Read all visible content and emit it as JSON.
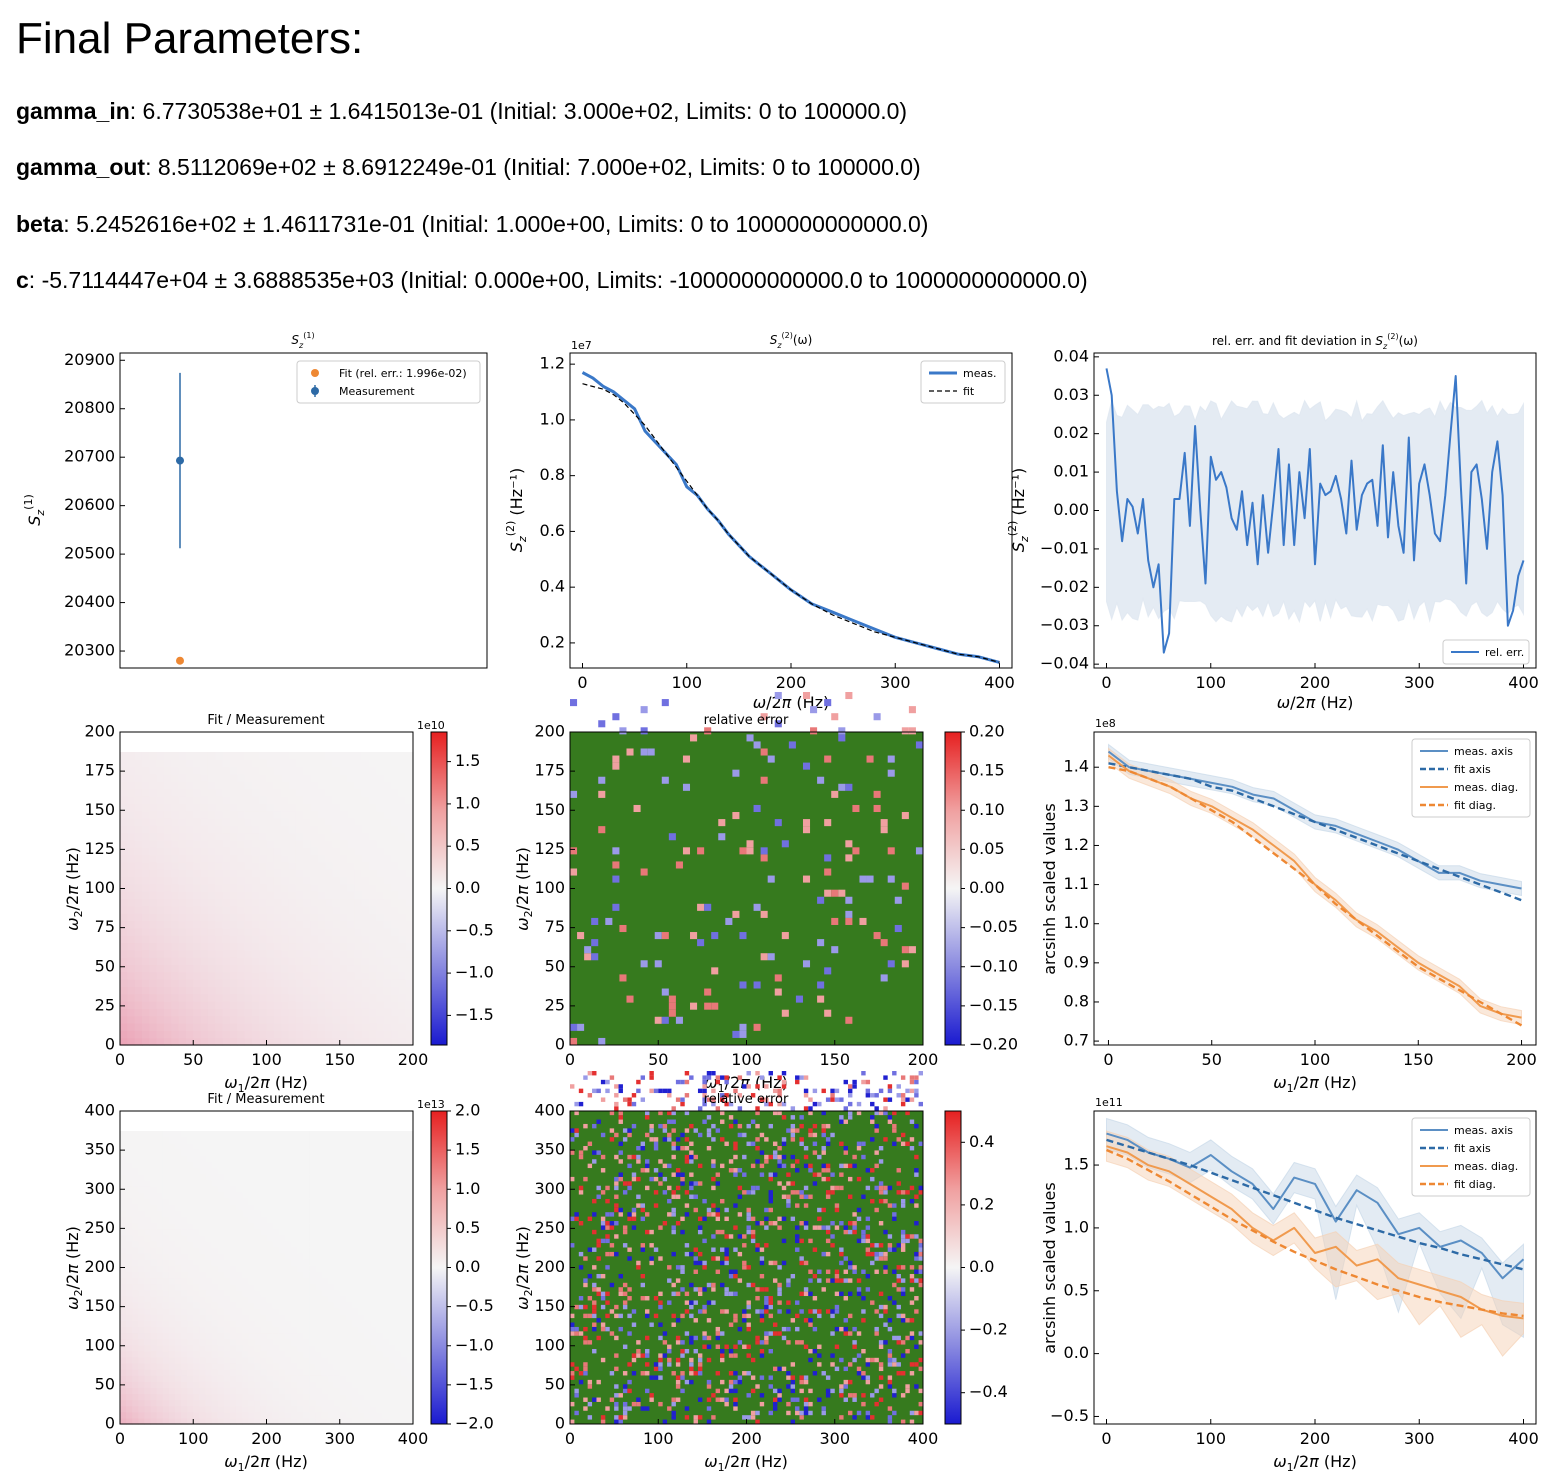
{
  "heading": "Final Parameters:",
  "params": [
    {
      "name": "gamma_in",
      "rest": ": 6.7730538e+01 ± 1.6415013e-01 (Initial: 3.000e+02, Limits: 0 to 100000.0)"
    },
    {
      "name": "gamma_out",
      "rest": ": 8.5112069e+02 ± 8.6912249e-01 (Initial: 7.000e+02, Limits: 0 to 100000.0)"
    },
    {
      "name": "beta",
      "rest": ": 5.2452616e+02 ± 1.4611731e-01 (Initial: 1.000e+00, Limits: 0 to 1000000000000.0)"
    },
    {
      "name": "c",
      "rest": ": -5.7114447e+04 ± 3.6888535e+03 (Initial: 0.000e+00, Limits: -1000000000000.0 to 1000000000000.0)"
    }
  ],
  "colors": {
    "blue": "#3a78c8",
    "blue_dark": "#2d6aa6",
    "orange": "#ee8833",
    "band_blue": "#c8d8e8",
    "band_orange": "#f5d2b5",
    "green": "#367a1e"
  },
  "chart_data": [
    {
      "type": "scatter",
      "title": "S_z^(1)",
      "ylabel": "S_z^(1)",
      "ylim": [
        20265,
        20915
      ],
      "yticks": [
        20300,
        20400,
        20500,
        20600,
        20700,
        20800,
        20900
      ],
      "legend": [
        "Fit (rel. err.: 1.996e-02)",
        "Measurement"
      ],
      "fit": 20280,
      "measurement": 20693,
      "measurement_err": 181
    },
    {
      "type": "line",
      "title": "S_z^(2)(ω)",
      "xlabel": "ω/2π (Hz)",
      "ylabel": "S_z^(2) (Hz^-1)",
      "offset_label": "1e7",
      "xlim": [
        -12,
        412
      ],
      "ylim": [
        0.11,
        1.24
      ],
      "xticks": [
        0,
        100,
        200,
        300,
        400
      ],
      "yticks": [
        0.2,
        0.4,
        0.6,
        0.8,
        1.0,
        1.2
      ],
      "legend": [
        "meas.",
        "fit"
      ],
      "x": [
        0,
        10,
        20,
        30,
        40,
        50,
        60,
        70,
        80,
        90,
        100,
        110,
        120,
        130,
        140,
        150,
        160,
        170,
        180,
        190,
        200,
        220,
        240,
        260,
        280,
        300,
        320,
        340,
        360,
        380,
        400
      ],
      "meas": [
        1.17,
        1.15,
        1.12,
        1.1,
        1.07,
        1.04,
        0.96,
        0.92,
        0.88,
        0.84,
        0.76,
        0.73,
        0.68,
        0.64,
        0.59,
        0.55,
        0.51,
        0.48,
        0.45,
        0.42,
        0.39,
        0.34,
        0.31,
        0.28,
        0.25,
        0.22,
        0.2,
        0.18,
        0.16,
        0.15,
        0.13
      ],
      "fit": [
        1.13,
        1.12,
        1.11,
        1.09,
        1.06,
        1.02,
        0.98,
        0.93,
        0.88,
        0.83,
        0.78,
        0.73,
        0.68,
        0.64,
        0.59,
        0.55,
        0.51,
        0.48,
        0.45,
        0.42,
        0.39,
        0.34,
        0.3,
        0.27,
        0.24,
        0.22,
        0.2,
        0.18,
        0.16,
        0.15,
        0.13
      ]
    },
    {
      "type": "line",
      "title": "rel. err. and fit deviation in S_z^(2)(ω)",
      "xlabel": "ω/2π (Hz)",
      "ylabel": "S_z^(2) (Hz^-1)",
      "xlim": [
        -12,
        412
      ],
      "ylim": [
        -0.041,
        0.041
      ],
      "xticks": [
        0,
        100,
        200,
        300,
        400
      ],
      "yticks": [
        -0.04,
        -0.03,
        -0.02,
        -0.01,
        0.0,
        0.01,
        0.02,
        0.03,
        0.04
      ],
      "legend": [
        "rel. err."
      ],
      "band": 0.026,
      "x": [
        0,
        5,
        10,
        15,
        20,
        25,
        30,
        35,
        40,
        45,
        50,
        55,
        60,
        65,
        70,
        75,
        80,
        85,
        90,
        95,
        100,
        105,
        110,
        115,
        120,
        125,
        130,
        135,
        140,
        145,
        150,
        155,
        160,
        165,
        170,
        175,
        180,
        185,
        190,
        195,
        200,
        205,
        210,
        215,
        220,
        225,
        230,
        235,
        240,
        245,
        250,
        255,
        260,
        265,
        270,
        275,
        280,
        285,
        290,
        295,
        300,
        305,
        310,
        315,
        320,
        325,
        330,
        335,
        340,
        345,
        350,
        355,
        360,
        365,
        370,
        375,
        380,
        385,
        390,
        395,
        400
      ],
      "y": [
        0.037,
        0.03,
        0.005,
        -0.008,
        0.003,
        0.001,
        -0.006,
        0.003,
        -0.013,
        -0.02,
        -0.014,
        -0.037,
        -0.032,
        0.003,
        0.003,
        0.015,
        -0.004,
        0.022,
        0.0,
        -0.019,
        0.014,
        0.008,
        0.01,
        0.006,
        -0.002,
        -0.005,
        0.005,
        -0.009,
        0.002,
        -0.014,
        0.004,
        -0.011,
        0.002,
        0.016,
        -0.009,
        0.012,
        -0.009,
        0.01,
        -0.002,
        0.016,
        -0.014,
        0.007,
        0.004,
        0.005,
        0.009,
        0.003,
        -0.006,
        0.013,
        -0.005,
        0.004,
        0.007,
        0.008,
        -0.004,
        0.017,
        -0.007,
        0.01,
        -0.004,
        -0.011,
        0.019,
        -0.013,
        0.007,
        0.012,
        0.004,
        -0.006,
        -0.008,
        0.004,
        0.02,
        0.035,
        0.006,
        -0.019,
        0.01,
        0.012,
        0.003,
        -0.01,
        0.01,
        0.018,
        0.004,
        -0.03,
        -0.026,
        -0.017,
        -0.013
      ]
    },
    {
      "type": "heatmap",
      "title": "Fit / Measurement",
      "xlabel": "ω1/2π (Hz)",
      "ylabel": "ω2/2π (Hz)",
      "xlim": [
        0,
        200
      ],
      "ylim": [
        0,
        200
      ],
      "xticks": [
        0,
        50,
        100,
        150,
        200
      ],
      "yticks": [
        0,
        25,
        50,
        75,
        100,
        125,
        150,
        175,
        200
      ],
      "colorbar_offset": "1e10",
      "colorbar_range": [
        -1.85,
        1.85
      ],
      "colorbar_ticks": [
        -1.5,
        -1.0,
        -0.5,
        0.0,
        0.5,
        1.0,
        1.5
      ],
      "colorbar_tick_labels": [
        "−1.5",
        "−1.0",
        "−0.5",
        "0.0",
        "0.5",
        "1.0",
        "1.5"
      ],
      "peak": 0.5
    },
    {
      "type": "heatmap",
      "title": "relative error",
      "xlabel": "ω1/2π (Hz)",
      "ylabel": "ω2/2π (Hz)",
      "xlim": [
        0,
        200
      ],
      "ylim": [
        0,
        200
      ],
      "xticks": [
        0,
        50,
        100,
        150,
        200
      ],
      "yticks": [
        0,
        25,
        50,
        75,
        100,
        125,
        150,
        175,
        200
      ],
      "colorbar_range": [
        -0.2,
        0.2
      ],
      "colorbar_ticks": [
        -0.2,
        -0.15,
        -0.1,
        -0.05,
        0.0,
        0.05,
        0.1,
        0.15,
        0.2
      ],
      "colorbar_tick_labels": [
        "−0.20",
        "−0.15",
        "−0.10",
        "−0.05",
        "0.00",
        "0.05",
        "0.10",
        "0.15",
        "0.20"
      ]
    },
    {
      "type": "line",
      "xlabel": "ω1/2π (Hz)",
      "ylabel": "arcsinh scaled values",
      "offset_label": "1e8",
      "xlim": [
        -7,
        207
      ],
      "ylim": [
        0.69,
        1.49
      ],
      "xticks": [
        0,
        50,
        100,
        150,
        200
      ],
      "yticks": [
        0.7,
        0.8,
        0.9,
        1.0,
        1.1,
        1.2,
        1.3,
        1.4
      ],
      "legend": [
        "meas. axis",
        "fit axis",
        "meas. diag.",
        "fit diag."
      ],
      "x": [
        0,
        10,
        20,
        30,
        40,
        50,
        60,
        70,
        80,
        90,
        100,
        110,
        120,
        130,
        140,
        150,
        160,
        170,
        180,
        190,
        200
      ],
      "meas_axis": [
        1.44,
        1.4,
        1.39,
        1.38,
        1.37,
        1.36,
        1.35,
        1.33,
        1.32,
        1.29,
        1.26,
        1.25,
        1.23,
        1.21,
        1.19,
        1.16,
        1.13,
        1.13,
        1.11,
        1.1,
        1.09
      ],
      "fit_axis": [
        1.41,
        1.4,
        1.39,
        1.38,
        1.37,
        1.35,
        1.34,
        1.32,
        1.3,
        1.28,
        1.26,
        1.24,
        1.22,
        1.2,
        1.18,
        1.16,
        1.14,
        1.12,
        1.1,
        1.08,
        1.06
      ],
      "meas_diag": [
        1.43,
        1.39,
        1.37,
        1.35,
        1.32,
        1.3,
        1.27,
        1.24,
        1.2,
        1.16,
        1.1,
        1.06,
        1.01,
        0.98,
        0.94,
        0.9,
        0.87,
        0.84,
        0.79,
        0.77,
        0.76
      ],
      "fit_diag": [
        1.4,
        1.39,
        1.37,
        1.35,
        1.32,
        1.29,
        1.26,
        1.22,
        1.18,
        1.14,
        1.1,
        1.05,
        1.01,
        0.97,
        0.93,
        0.89,
        0.86,
        0.83,
        0.8,
        0.77,
        0.74
      ]
    },
    {
      "type": "heatmap",
      "title": "Fit / Measurement",
      "xlabel": "ω1/2π (Hz)",
      "ylabel": "ω2/2π (Hz)",
      "xlim": [
        0,
        400
      ],
      "ylim": [
        0,
        400
      ],
      "xticks": [
        0,
        100,
        200,
        300,
        400
      ],
      "yticks": [
        0,
        50,
        100,
        150,
        200,
        250,
        300,
        350,
        400
      ],
      "colorbar_offset": "1e13",
      "colorbar_range": [
        -2.0,
        2.0
      ],
      "colorbar_ticks": [
        -2.0,
        -1.5,
        -1.0,
        -0.5,
        0.0,
        0.5,
        1.0,
        1.5,
        2.0
      ],
      "colorbar_tick_labels": [
        "−2.0",
        "−1.5",
        "−1.0",
        "−0.5",
        "0.0",
        "0.5",
        "1.0",
        "1.5",
        "2.0"
      ],
      "peak": 0.42
    },
    {
      "type": "heatmap",
      "title": "relative error",
      "xlabel": "ω1/2π (Hz)",
      "ylabel": "ω2/2π (Hz)",
      "xlim": [
        0,
        400
      ],
      "ylim": [
        0,
        400
      ],
      "xticks": [
        0,
        100,
        200,
        300,
        400
      ],
      "yticks": [
        0,
        50,
        100,
        150,
        200,
        250,
        300,
        350,
        400
      ],
      "colorbar_range": [
        -0.5,
        0.5
      ],
      "colorbar_ticks": [
        -0.4,
        -0.2,
        0.0,
        0.2,
        0.4
      ],
      "colorbar_tick_labels": [
        "−0.4",
        "−0.2",
        "0.0",
        "0.2",
        "0.4"
      ]
    },
    {
      "type": "line",
      "xlabel": "ω1/2π (Hz)",
      "ylabel": "arcsinh scaled values",
      "offset_label": "1e11",
      "xlim": [
        -12,
        412
      ],
      "ylim": [
        -0.56,
        1.93
      ],
      "xticks": [
        0,
        100,
        200,
        300,
        400
      ],
      "yticks": [
        -0.5,
        0.0,
        0.5,
        1.0,
        1.5
      ],
      "yticklabels": [
        "−0.5",
        "0.0",
        "0.5",
        "1.0",
        "1.5"
      ],
      "legend": [
        "meas. axis",
        "fit axis",
        "meas. diag.",
        "fit diag."
      ],
      "x": [
        0,
        20,
        40,
        60,
        80,
        100,
        120,
        140,
        160,
        180,
        200,
        220,
        240,
        260,
        280,
        300,
        320,
        340,
        360,
        380,
        400
      ],
      "meas_axis": [
        1.75,
        1.7,
        1.6,
        1.55,
        1.48,
        1.58,
        1.45,
        1.35,
        1.15,
        1.4,
        1.35,
        1.05,
        1.3,
        1.2,
        0.95,
        1.0,
        0.85,
        0.9,
        0.8,
        0.6,
        0.75
      ],
      "fit_axis": [
        1.7,
        1.65,
        1.6,
        1.55,
        1.5,
        1.44,
        1.38,
        1.32,
        1.26,
        1.2,
        1.14,
        1.08,
        1.03,
        0.98,
        0.93,
        0.88,
        0.84,
        0.79,
        0.75,
        0.71,
        0.67
      ],
      "meas_diag": [
        1.65,
        1.6,
        1.5,
        1.45,
        1.35,
        1.25,
        1.15,
        1.0,
        0.9,
        1.0,
        0.8,
        0.85,
        0.7,
        0.75,
        0.6,
        0.55,
        0.5,
        0.45,
        0.35,
        0.3,
        0.28
      ],
      "fit_diag": [
        1.62,
        1.55,
        1.46,
        1.37,
        1.27,
        1.17,
        1.07,
        0.98,
        0.89,
        0.81,
        0.74,
        0.67,
        0.61,
        0.55,
        0.5,
        0.45,
        0.41,
        0.38,
        0.35,
        0.32,
        0.3
      ]
    }
  ]
}
